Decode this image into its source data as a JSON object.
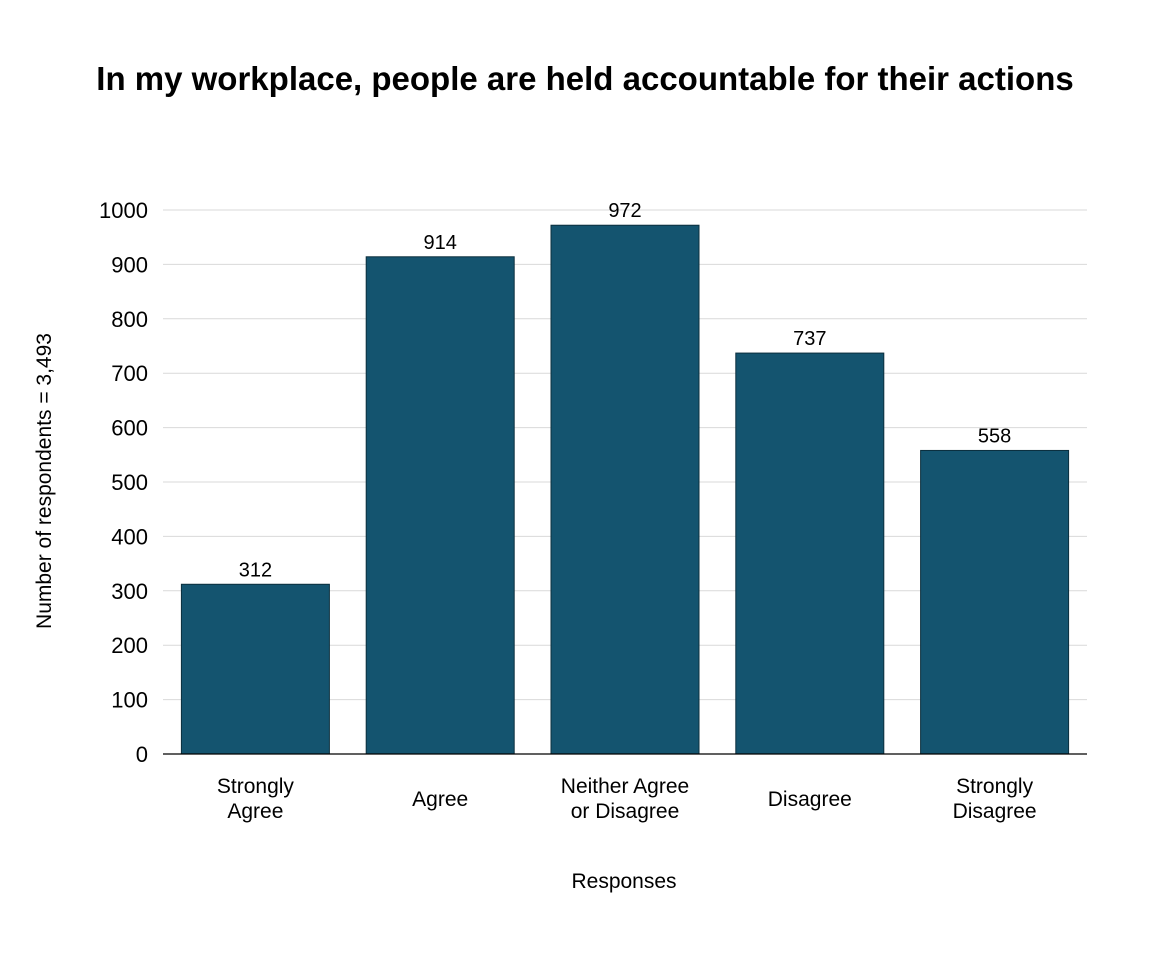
{
  "chart_data": {
    "type": "bar",
    "title": "In my workplace, people are held accountable for their actions",
    "xlabel": "Responses",
    "ylabel": "Number of respondents = 3,493",
    "categories": [
      [
        "Strongly",
        "Agree"
      ],
      [
        "Agree"
      ],
      [
        "Neither Agree",
        "or Disagree"
      ],
      [
        "Disagree"
      ],
      [
        "Strongly",
        "Disagree"
      ]
    ],
    "values": [
      312,
      914,
      972,
      737,
      558
    ],
    "ylim": [
      0,
      1000
    ],
    "yticks": [
      0,
      100,
      200,
      300,
      400,
      500,
      600,
      700,
      800,
      900,
      1000
    ],
    "grid": true,
    "legend": "none",
    "bar_color": "#14546f"
  }
}
